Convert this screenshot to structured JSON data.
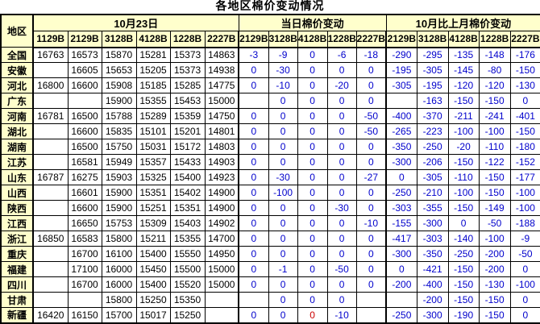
{
  "colors": {
    "header_bg": "#FFFFCC",
    "price_text": "#000000",
    "change_text": "#0000CC",
    "highlight_text": "#CC0000",
    "grid": "#000000"
  },
  "chart_data": {
    "type": "table",
    "title": "各地区棉价变动情况",
    "region_header": "地区",
    "column_groups": [
      {
        "label": "10月23日",
        "columns": [
          "1129B",
          "2129B",
          "3128B",
          "4128B",
          "1228B",
          "2227B"
        ]
      },
      {
        "label": "当日棉价变动",
        "columns": [
          "2129B",
          "3128B",
          "4128B",
          "1228B",
          "2227B"
        ]
      },
      {
        "label": "10月比上月棉价变动",
        "columns": [
          "2129B",
          "3128B",
          "4128B",
          "1228B",
          "2227B"
        ]
      }
    ],
    "rows": [
      {
        "region": "全国",
        "prices": [
          "16763",
          "16573",
          "15870",
          "15281",
          "15373",
          "14863"
        ],
        "day_change": [
          "-3",
          "-9",
          "0",
          "-6",
          "-18"
        ],
        "month_change": [
          "-290",
          "-295",
          "-135",
          "-148",
          "-176"
        ]
      },
      {
        "region": "安徽",
        "prices": [
          "",
          "16605",
          "15653",
          "15205",
          "15373",
          "14938"
        ],
        "day_change": [
          "0",
          "-30",
          "0",
          "0",
          "0"
        ],
        "month_change": [
          "-195",
          "-305",
          "-145",
          "-80",
          "-150"
        ]
      },
      {
        "region": "河北",
        "prices": [
          "16800",
          "16600",
          "15908",
          "15185",
          "15285",
          "14775"
        ],
        "day_change": [
          "0",
          "-10",
          "0",
          "-20",
          "0"
        ],
        "month_change": [
          "-305",
          "-195",
          "-120",
          "-120",
          "-130"
        ]
      },
      {
        "region": "广东",
        "prices": [
          "",
          "",
          "15900",
          "15355",
          "15453",
          "15000"
        ],
        "day_change": [
          "",
          "0",
          "0",
          "0",
          "0"
        ],
        "month_change": [
          "",
          "-163",
          "-150",
          "-150",
          "0"
        ]
      },
      {
        "region": "河南",
        "prices": [
          "16781",
          "16500",
          "15788",
          "15289",
          "15359",
          "14750"
        ],
        "day_change": [
          "0",
          "0",
          "0",
          "0",
          "-50"
        ],
        "month_change": [
          "-400",
          "-370",
          "-211",
          "-241",
          "-401"
        ]
      },
      {
        "region": "湖北",
        "prices": [
          "",
          "16600",
          "15835",
          "15101",
          "15201",
          "14801"
        ],
        "day_change": [
          "0",
          "0",
          "0",
          "0",
          "-50"
        ],
        "month_change": [
          "-265",
          "-223",
          "-100",
          "-100",
          "-150"
        ]
      },
      {
        "region": "湖南",
        "prices": [
          "",
          "16500",
          "15750",
          "15031",
          "15172",
          "14803"
        ],
        "day_change": [
          "0",
          "0",
          "0",
          "0",
          "0"
        ],
        "month_change": [
          "-350",
          "-250",
          "-20",
          "-110",
          "-180"
        ]
      },
      {
        "region": "江苏",
        "prices": [
          "",
          "16581",
          "15949",
          "15357",
          "15433",
          "14903"
        ],
        "day_change": [
          "0",
          "0",
          "0",
          "0",
          "0"
        ],
        "month_change": [
          "-300",
          "-206",
          "-150",
          "-122",
          "-152"
        ]
      },
      {
        "region": "山东",
        "prices": [
          "16787",
          "16275",
          "15903",
          "15325",
          "15400",
          "14923"
        ],
        "day_change": [
          "0",
          "-30",
          "0",
          "0",
          "-27"
        ],
        "month_change": [
          "0",
          "-305",
          "-110",
          "-150",
          "-177"
        ]
      },
      {
        "region": "山西",
        "prices": [
          "",
          "16601",
          "15900",
          "15351",
          "15402",
          "14900"
        ],
        "day_change": [
          "0",
          "-100",
          "0",
          "0",
          "0"
        ],
        "month_change": [
          "-250",
          "-210",
          "-100",
          "-150",
          "-100"
        ]
      },
      {
        "region": "陕西",
        "prices": [
          "",
          "16600",
          "15900",
          "15251",
          "15351",
          "14900"
        ],
        "day_change": [
          "0",
          "0",
          "0",
          "-30",
          "0"
        ],
        "month_change": [
          "-303",
          "-355",
          "-150",
          "-149",
          "-100"
        ]
      },
      {
        "region": "江西",
        "prices": [
          "",
          "16650",
          "15753",
          "15309",
          "15403",
          "14902"
        ],
        "day_change": [
          "0",
          "0",
          "0",
          "0",
          "-10"
        ],
        "month_change": [
          "-155",
          "-300",
          "0",
          "-50",
          "-188"
        ]
      },
      {
        "region": "浙江",
        "prices": [
          "16850",
          "16583",
          "15800",
          "15211",
          "15355",
          "14700"
        ],
        "day_change": [
          "0",
          "0",
          "0",
          "0",
          "0"
        ],
        "month_change": [
          "-417",
          "-303",
          "-140",
          "-100",
          "-9"
        ]
      },
      {
        "region": "重庆",
        "prices": [
          "",
          "16700",
          "16100",
          "15400",
          "15550",
          "14950"
        ],
        "day_change": [
          "0",
          "0",
          "0",
          "0",
          "0"
        ],
        "month_change": [
          "-300",
          "-350",
          "-250",
          "-200",
          "-50"
        ]
      },
      {
        "region": "福建",
        "prices": [
          "",
          "17100",
          "16000",
          "15450",
          "15500",
          "15000"
        ],
        "day_change": [
          "0",
          "-1",
          "0",
          "-50",
          "0"
        ],
        "month_change": [
          "0",
          "-421",
          "-150",
          "-200",
          "0"
        ]
      },
      {
        "region": "四川",
        "prices": [
          "",
          "16700",
          "16000",
          "15400",
          "15520",
          "15000"
        ],
        "day_change": [
          "0",
          "0",
          "0",
          "0",
          "0"
        ],
        "month_change": [
          "-200",
          "-400",
          "-150",
          "-130",
          "-100"
        ]
      },
      {
        "region": "甘肃",
        "prices": [
          "",
          "",
          "15800",
          "15250",
          "15350",
          ""
        ],
        "day_change": [
          "",
          "0",
          "0",
          "0",
          ""
        ],
        "month_change": [
          "",
          "-200",
          "-150",
          "-150",
          "0"
        ]
      },
      {
        "region": "新疆",
        "prices": [
          "16420",
          "16150",
          "15700",
          "15017",
          "15250",
          ""
        ],
        "day_change": [
          "0",
          "0",
          "0",
          "-10",
          ""
        ],
        "month_change": [
          "-250",
          "-300",
          "-190",
          "-150",
          "0"
        ]
      }
    ],
    "highlight_cell": {
      "region": "新疆",
      "section": "day_change",
      "col_index": 2,
      "value": "0"
    }
  }
}
